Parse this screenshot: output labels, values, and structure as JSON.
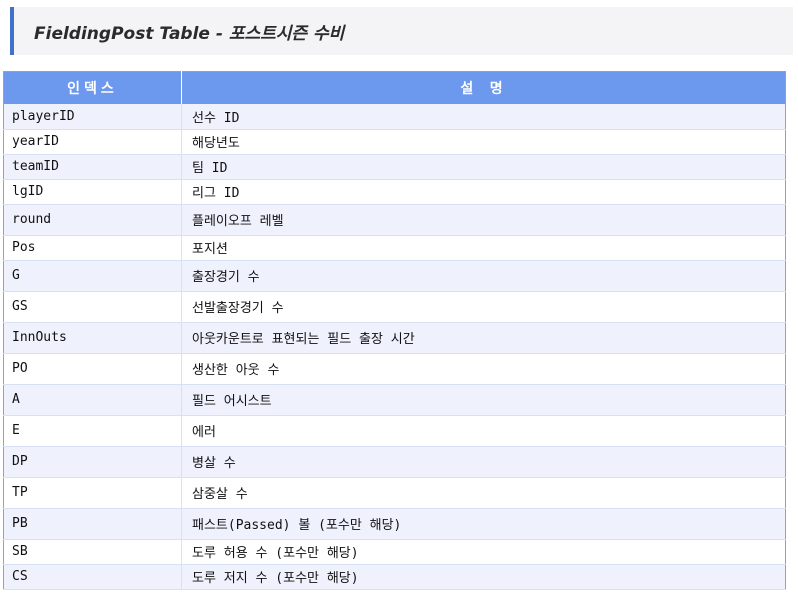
{
  "title": "FieldingPost Table - 포스트시즌 수비",
  "headers": [
    "인덱스",
    "설 명"
  ],
  "rows": [
    {
      "index": "playerID",
      "desc": "선수 ID"
    },
    {
      "index": "yearID",
      "desc": "해당년도"
    },
    {
      "index": "teamID",
      "desc": "팀 ID"
    },
    {
      "index": "lgID",
      "desc": "리그 ID"
    },
    {
      "index": "round",
      "desc": "플레이오프 레벨"
    },
    {
      "index": "Pos",
      "desc": "포지션"
    },
    {
      "index": "G",
      "desc": "출장경기 수"
    },
    {
      "index": "GS",
      "desc": "선발출장경기 수"
    },
    {
      "index": "InnOuts",
      "desc": "아웃카운트로 표현되는 필드 출장 시간"
    },
    {
      "index": "PO",
      "desc": "생산한 아웃 수"
    },
    {
      "index": "A",
      "desc": "필드 어시스트"
    },
    {
      "index": "E",
      "desc": "에러"
    },
    {
      "index": "DP",
      "desc": "병살 수"
    },
    {
      "index": "TP",
      "desc": "삼중살 수"
    },
    {
      "index": "PB",
      "desc": "패스트(Passed) 볼 (포수만 해당)"
    },
    {
      "index": "SB",
      "desc": "도루 허용 수 (포수만 해당)"
    },
    {
      "index": "CS",
      "desc": "도루 저지 수 (포수만 해당)"
    }
  ]
}
